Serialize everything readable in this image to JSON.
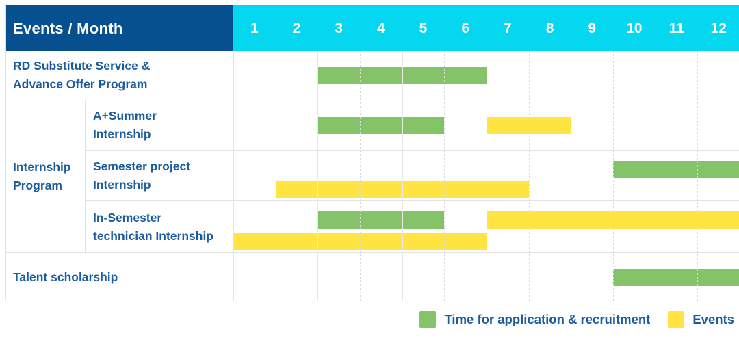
{
  "header": {
    "label": "Events / Month",
    "months": [
      "1",
      "2",
      "3",
      "4",
      "5",
      "6",
      "7",
      "8",
      "9",
      "10",
      "11",
      "12"
    ]
  },
  "colors": {
    "navy": "#07508f",
    "cyan": "#06d7f1",
    "green": "#85c369",
    "yellow": "#ffe442",
    "text_blue": "#1b5ca0",
    "grid_line": "#e9e9e9",
    "grid_line_dotted": "#d9d9d9",
    "border": "#e3e3e3"
  },
  "group": {
    "label": "Internship Program",
    "label_lines": [
      "Internship",
      "Program"
    ]
  },
  "chart_data": {
    "type": "bar",
    "subtype": "gantt-schedule",
    "title": "Events / Month",
    "x_categories": [
      1,
      2,
      3,
      4,
      5,
      6,
      7,
      8,
      9,
      10,
      11,
      12
    ],
    "x_range": [
      1,
      12
    ],
    "grid": true,
    "legend_position": "bottom-right",
    "series_meaning": {
      "green": "Time for application & recruitment",
      "yellow": "Events"
    },
    "rows": [
      {
        "label": "RD Substitute Service & Advance Offer Program",
        "label_lines": [
          "RD Substitute Service &",
          "Advance Offer Program"
        ],
        "group": null,
        "bars": [
          {
            "series": "green",
            "start_month": 3,
            "end_month": 6,
            "lane": "center"
          }
        ]
      },
      {
        "label": "A+Summer Internship",
        "label_lines": [
          "A+Summer",
          "Internship"
        ],
        "group": "Internship Program",
        "bars": [
          {
            "series": "green",
            "start_month": 3,
            "end_month": 5,
            "lane": "center"
          },
          {
            "series": "yellow",
            "start_month": 7,
            "end_month": 8,
            "lane": "center"
          }
        ]
      },
      {
        "label": "Semester project Internship",
        "label_lines": [
          "Semester project",
          "Internship"
        ],
        "group": "Internship Program",
        "bars": [
          {
            "series": "green",
            "start_month": 10,
            "end_month": 12,
            "lane": "top"
          },
          {
            "series": "yellow",
            "start_month": 2,
            "end_month": 7,
            "lane": "bottom"
          }
        ]
      },
      {
        "label": "In-Semester technician Internship",
        "label_lines": [
          "In-Semester",
          "technician Internship"
        ],
        "group": "Internship Program",
        "bars": [
          {
            "series": "green",
            "start_month": 3,
            "end_month": 5,
            "lane": "top"
          },
          {
            "series": "yellow",
            "start_month": 7,
            "end_month": 12,
            "lane": "top"
          },
          {
            "series": "yellow",
            "start_month": 1,
            "end_month": 6,
            "lane": "bottom"
          }
        ]
      },
      {
        "label": "Talent scholarship",
        "label_lines": [
          "Talent scholarship"
        ],
        "group": null,
        "bars": [
          {
            "series": "green",
            "start_month": 10,
            "end_month": 12,
            "lane": "center"
          }
        ]
      }
    ]
  },
  "legend": {
    "items": [
      {
        "series": "green",
        "label": "Time for application & recruitment"
      },
      {
        "series": "yellow",
        "label": "Events"
      }
    ]
  }
}
